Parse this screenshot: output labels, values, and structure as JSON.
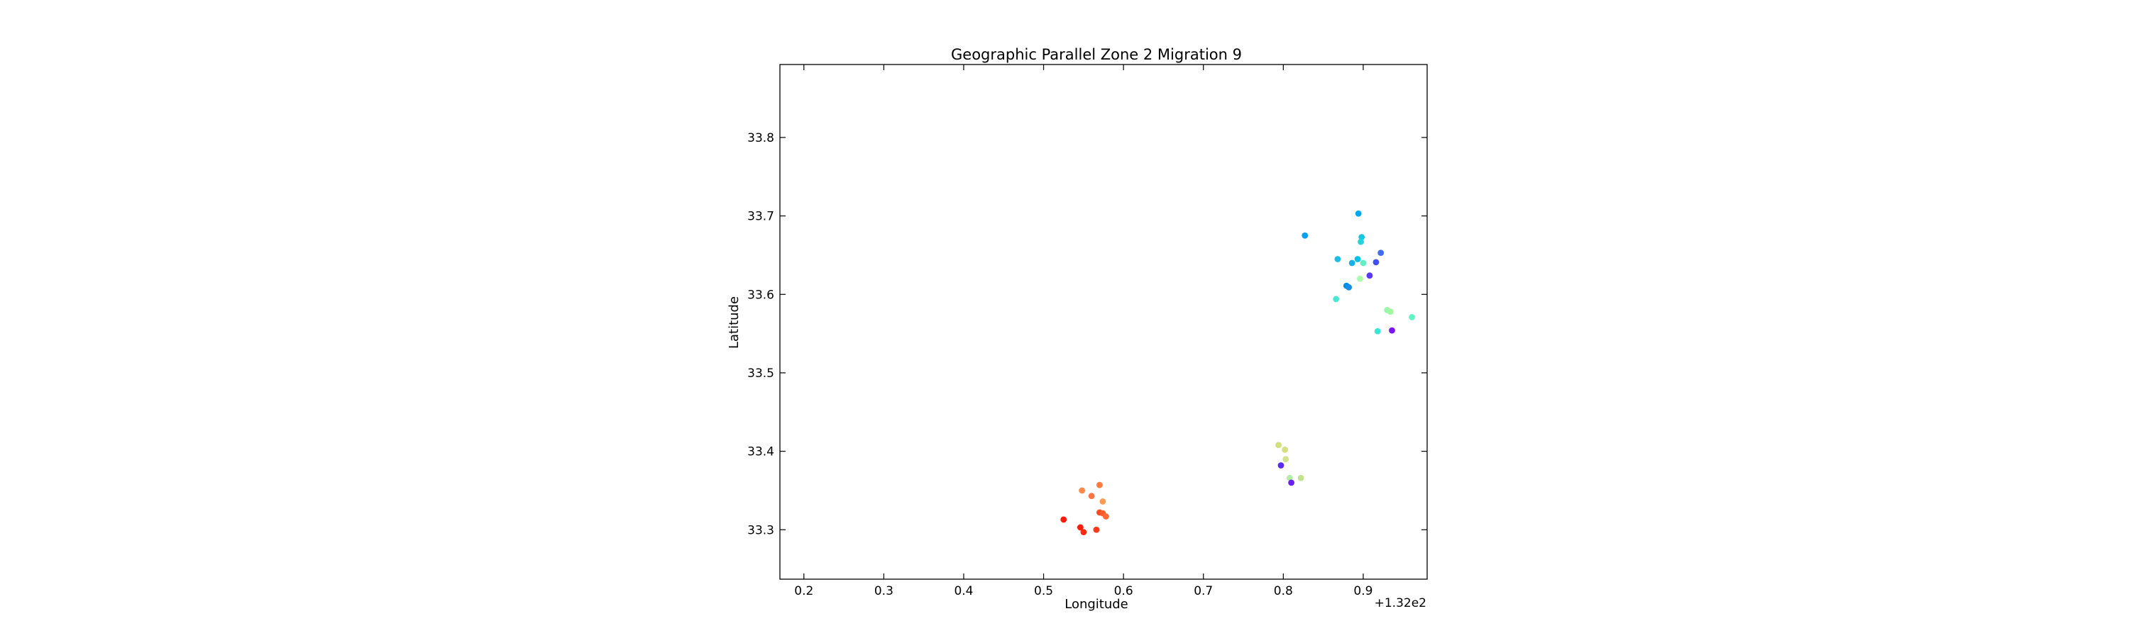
{
  "chart_data": {
    "type": "scatter",
    "title": "Geographic Parallel Zone 2 Migration 9",
    "xlabel": "Longitude",
    "ylabel": "Latitude",
    "x_offset_label": "+1.32e2",
    "xlim": [
      132.17,
      132.98
    ],
    "ylim": [
      33.237,
      33.893
    ],
    "x_ticks": [
      132.2,
      132.3,
      132.4,
      132.5,
      132.6,
      132.7,
      132.8,
      132.9
    ],
    "x_tick_labels": [
      "0.2",
      "0.3",
      "0.4",
      "0.5",
      "0.6",
      "0.7",
      "0.8",
      "0.9"
    ],
    "y_ticks": [
      33.3,
      33.4,
      33.5,
      33.6,
      33.7,
      33.8
    ],
    "y_tick_labels": [
      "33.3",
      "33.4",
      "33.5",
      "33.6",
      "33.7",
      "33.8"
    ],
    "grid": false,
    "legend": "none",
    "points": [
      {
        "x": 132.894,
        "y": 33.703,
        "color": "#00a9f0"
      },
      {
        "x": 132.827,
        "y": 33.675,
        "color": "#0a9ff0"
      },
      {
        "x": 132.898,
        "y": 33.673,
        "color": "#18c5e8"
      },
      {
        "x": 132.897,
        "y": 33.667,
        "color": "#26d3dd"
      },
      {
        "x": 132.922,
        "y": 33.653,
        "color": "#3f6df2"
      },
      {
        "x": 132.868,
        "y": 33.645,
        "color": "#1ebde8"
      },
      {
        "x": 132.893,
        "y": 33.645,
        "color": "#00c2ea"
      },
      {
        "x": 132.886,
        "y": 33.64,
        "color": "#17b0e8"
      },
      {
        "x": 132.9,
        "y": 33.64,
        "color": "#60f0c4"
      },
      {
        "x": 132.916,
        "y": 33.641,
        "color": "#4350f5"
      },
      {
        "x": 132.908,
        "y": 33.624,
        "color": "#5a3af6"
      },
      {
        "x": 132.896,
        "y": 33.62,
        "color": "#a8ffa8"
      },
      {
        "x": 132.879,
        "y": 33.611,
        "color": "#008fe8"
      },
      {
        "x": 132.882,
        "y": 33.609,
        "color": "#148ee6"
      },
      {
        "x": 132.866,
        "y": 33.594,
        "color": "#4ae7d1"
      },
      {
        "x": 132.93,
        "y": 33.58,
        "color": "#98f7a8"
      },
      {
        "x": 132.934,
        "y": 33.578,
        "color": "#a2f8a0"
      },
      {
        "x": 132.961,
        "y": 33.571,
        "color": "#62f5c4"
      },
      {
        "x": 132.918,
        "y": 33.553,
        "color": "#38e8d6"
      },
      {
        "x": 132.936,
        "y": 33.554,
        "color": "#7a14f6"
      },
      {
        "x": 132.794,
        "y": 33.408,
        "color": "#d2e080"
      },
      {
        "x": 132.802,
        "y": 33.402,
        "color": "#d6de82"
      },
      {
        "x": 132.803,
        "y": 33.39,
        "color": "#cfe48a"
      },
      {
        "x": 132.797,
        "y": 33.382,
        "color": "#5b2bf4"
      },
      {
        "x": 132.822,
        "y": 33.366,
        "color": "#c2e28e"
      },
      {
        "x": 132.808,
        "y": 33.366,
        "color": "#b6ecaa"
      },
      {
        "x": 132.81,
        "y": 33.36,
        "color": "#6a20f2"
      },
      {
        "x": 132.57,
        "y": 33.357,
        "color": "#ff7a3c"
      },
      {
        "x": 132.548,
        "y": 33.35,
        "color": "#ff8a48"
      },
      {
        "x": 132.56,
        "y": 33.343,
        "color": "#ff7242"
      },
      {
        "x": 132.574,
        "y": 33.336,
        "color": "#ff9a50"
      },
      {
        "x": 132.57,
        "y": 33.322,
        "color": "#ff4a20"
      },
      {
        "x": 132.574,
        "y": 33.321,
        "color": "#ff5a28"
      },
      {
        "x": 132.578,
        "y": 33.317,
        "color": "#ff6a34"
      },
      {
        "x": 132.525,
        "y": 33.313,
        "color": "#ff1a08"
      },
      {
        "x": 132.546,
        "y": 33.303,
        "color": "#ff1c0a"
      },
      {
        "x": 132.55,
        "y": 33.297,
        "color": "#ff2a10"
      },
      {
        "x": 132.566,
        "y": 33.3,
        "color": "#ff3a18"
      }
    ]
  }
}
